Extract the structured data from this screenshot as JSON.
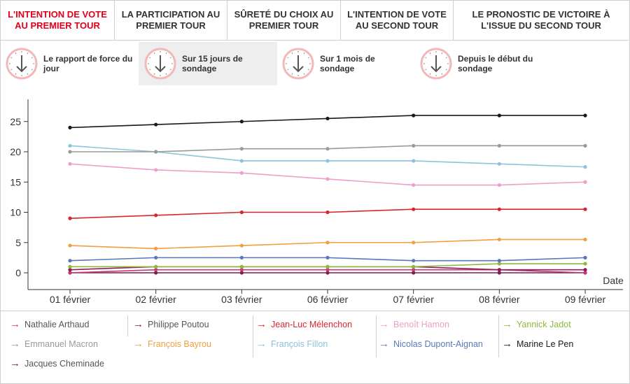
{
  "tabs": [
    {
      "label": "L'INTENTION DE VOTE AU PREMIER TOUR",
      "active": true
    },
    {
      "label": "LA PARTICIPATION AU PREMIER TOUR",
      "active": false
    },
    {
      "label": "SÛRETÉ DU CHOIX AU PREMIER TOUR",
      "active": false
    },
    {
      "label": "L'INTENTION DE VOTE AU SECOND TOUR",
      "active": false
    },
    {
      "label": "LE PRONOSTIC DE VICTOIRE À L'ISSUE DU SECOND TOUR",
      "active": false
    }
  ],
  "periods": [
    {
      "label": "Le rapport de force du jour",
      "active": false
    },
    {
      "label": "Sur 15 jours de sondage",
      "active": true
    },
    {
      "label": "Sur 1 mois de sondage",
      "active": false
    },
    {
      "label": "Depuis le début du sondage",
      "active": false
    }
  ],
  "colors": {
    "accent": "#e2001a",
    "axis": "#333333",
    "clockRing": "#f3b8b8",
    "clockDial": "#555555"
  },
  "chart_data": {
    "type": "line",
    "title": "",
    "xlabel": "Date",
    "ylabel": "",
    "ylim": [
      -2,
      28
    ],
    "yticks": [
      0,
      5,
      10,
      15,
      20,
      25
    ],
    "categories": [
      "01 février",
      "02 février",
      "03 février",
      "06 février",
      "07 février",
      "08 février",
      "09 février"
    ],
    "grid": false,
    "series": [
      {
        "name": "Marine Le Pen",
        "color": "#1a1a1a",
        "values": [
          24,
          24.5,
          25,
          25.5,
          26,
          26,
          26
        ]
      },
      {
        "name": "Emmanuel Macron",
        "color": "#9a9a9a",
        "values": [
          20,
          20,
          20.5,
          20.5,
          21,
          21,
          21
        ]
      },
      {
        "name": "François Fillon",
        "color": "#8dc3dc",
        "values": [
          21,
          20,
          18.5,
          18.5,
          18.5,
          18,
          17.5
        ]
      },
      {
        "name": "Benoît Hamon",
        "color": "#f09ec9",
        "values": [
          18,
          17,
          16.5,
          15.5,
          14.5,
          14.5,
          15
        ]
      },
      {
        "name": "Jean-Luc Mélenchon",
        "color": "#d9262e",
        "values": [
          9,
          9.5,
          10,
          10,
          10.5,
          10.5,
          10.5
        ]
      },
      {
        "name": "François Bayrou",
        "color": "#f0a040",
        "values": [
          4.5,
          4,
          4.5,
          5,
          5,
          5.5,
          5.5
        ]
      },
      {
        "name": "Nicolas Dupont-Aignan",
        "color": "#5a78b6",
        "values": [
          2,
          2.5,
          2.5,
          2.5,
          2,
          2,
          2.5
        ]
      },
      {
        "name": "Yannick Jadot",
        "color": "#8fb83c",
        "values": [
          1,
          1,
          1,
          1,
          1,
          1.5,
          1.5
        ]
      },
      {
        "name": "Philippe Poutou",
        "color": "#8f1b5a",
        "values": [
          0.5,
          1,
          1,
          1,
          1,
          0.5,
          0.5
        ]
      },
      {
        "name": "Nathalie Arthaud",
        "color": "#c43a73",
        "values": [
          0,
          0.5,
          0.5,
          0.5,
          0.5,
          0.5,
          0
        ]
      },
      {
        "name": "Jacques Cheminade",
        "color": "#7a1e55",
        "values": [
          0,
          0,
          0,
          0,
          0,
          0,
          0
        ]
      }
    ]
  },
  "legend": [
    {
      "name": "Nathalie Arthaud",
      "color": "#c43a73",
      "text_color": "#555555"
    },
    {
      "name": "Philippe Poutou",
      "color": "#8f1b5a",
      "text_color": "#555555"
    },
    {
      "name": "Jean-Luc Mélenchon",
      "color": "#d9262e",
      "text_color": "#d9262e"
    },
    {
      "name": "Benoît Hamon",
      "color": "#f09ec9",
      "text_color": "#f09ec9"
    },
    {
      "name": "Yannick Jadot",
      "color": "#8fb83c",
      "text_color": "#8fb83c"
    },
    {
      "name": "Emmanuel Macron",
      "color": "#9a9a9a",
      "text_color": "#9a9a9a"
    },
    {
      "name": "François Bayrou",
      "color": "#f0a040",
      "text_color": "#f0a040"
    },
    {
      "name": "François Fillon",
      "color": "#8dc3dc",
      "text_color": "#8dc3dc"
    },
    {
      "name": "Nicolas Dupont-Aignan",
      "color": "#5a78b6",
      "text_color": "#5a78b6"
    },
    {
      "name": "Marine Le Pen",
      "color": "#1a1a1a",
      "text_color": "#1a1a1a"
    },
    {
      "name": "Jacques Cheminade",
      "color": "#7a1e55",
      "text_color": "#555555"
    }
  ]
}
